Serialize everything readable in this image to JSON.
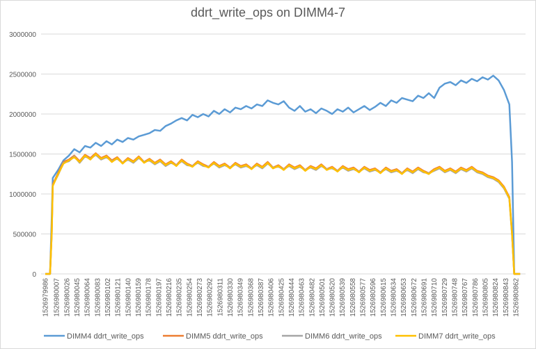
{
  "chart_data": {
    "type": "line",
    "title": "ddrt_write_ops on DIMM4-7",
    "xlabel": "",
    "ylabel": "",
    "ylim": [
      0,
      3000000
    ],
    "xlim": [
      1526979986,
      1526980862
    ],
    "grid": true,
    "legend_position": "bottom",
    "y_ticks": [
      "0",
      "500000",
      "1000000",
      "1500000",
      "2000000",
      "2500000",
      "3000000"
    ],
    "x_tick_labels": [
      "1526979986",
      "1526980007",
      "1526980026",
      "1526980045",
      "1526980064",
      "1526980083",
      "1526980102",
      "1526980121",
      "1526980140",
      "1526980159",
      "1526980178",
      "1526980197",
      "1526980216",
      "1526980235",
      "1526980254",
      "1526980273",
      "1526980292",
      "1526980311",
      "1526980330",
      "1526980349",
      "1526980368",
      "1526980387",
      "1526980406",
      "1526980425",
      "1526980444",
      "1526980463",
      "1526980482",
      "1526980501",
      "1526980520",
      "1526980539",
      "1526980558",
      "1526980577",
      "1526980596",
      "1526980615",
      "1526980634",
      "1526980653",
      "1526980672",
      "1526980691",
      "1526980710",
      "1526980729",
      "1526980748",
      "1526980767",
      "1526980786",
      "1526980805",
      "1526980824",
      "1526980843",
      "1526980862"
    ],
    "x": [
      1526979986,
      1526979990,
      1526979995,
      1526979998,
      1526980000,
      1526980010,
      1526980020,
      1526980030,
      1526980040,
      1526980050,
      1526980060,
      1526980070,
      1526980080,
      1526980090,
      1526980100,
      1526980110,
      1526980120,
      1526980130,
      1526980140,
      1526980150,
      1526980160,
      1526980170,
      1526980180,
      1526980190,
      1526980200,
      1526980210,
      1526980220,
      1526980230,
      1526980240,
      1526980250,
      1526980260,
      1526980270,
      1526980280,
      1526980290,
      1526980300,
      1526980310,
      1526980320,
      1526980330,
      1526980340,
      1526980350,
      1526980360,
      1526980370,
      1526980380,
      1526980390,
      1526980400,
      1526980410,
      1526980420,
      1526980430,
      1526980440,
      1526980450,
      1526980460,
      1526980470,
      1526980480,
      1526980490,
      1526980500,
      1526980510,
      1526980520,
      1526980530,
      1526980540,
      1526980550,
      1526980560,
      1526980570,
      1526980580,
      1526980590,
      1526980600,
      1526980610,
      1526980620,
      1526980630,
      1526980640,
      1526980650,
      1526980660,
      1526980670,
      1526980680,
      1526980690,
      1526980700,
      1526980710,
      1526980720,
      1526980730,
      1526980740,
      1526980750,
      1526980760,
      1526980770,
      1526980780,
      1526980790,
      1526980800,
      1526980810,
      1526980820,
      1526980830,
      1526980840,
      1526980850,
      1526980855,
      1526980859,
      1526980870
    ],
    "series": [
      {
        "name": "DIMM4 ddrt_write_ops",
        "color": "#5B9BD5",
        "values": [
          0,
          0,
          0,
          700000,
          1200000,
          1300000,
          1420000,
          1480000,
          1560000,
          1520000,
          1600000,
          1580000,
          1640000,
          1600000,
          1660000,
          1620000,
          1680000,
          1650000,
          1700000,
          1680000,
          1720000,
          1740000,
          1760000,
          1800000,
          1790000,
          1850000,
          1880000,
          1920000,
          1950000,
          1920000,
          1990000,
          1960000,
          2000000,
          1970000,
          2040000,
          2000000,
          2060000,
          2020000,
          2080000,
          2060000,
          2100000,
          2070000,
          2120000,
          2100000,
          2170000,
          2140000,
          2120000,
          2160000,
          2080000,
          2040000,
          2100000,
          2030000,
          2060000,
          2010000,
          2070000,
          2040000,
          2000000,
          2060000,
          2030000,
          2080000,
          2020000,
          2060000,
          2100000,
          2050000,
          2090000,
          2140000,
          2100000,
          2170000,
          2140000,
          2200000,
          2180000,
          2160000,
          2230000,
          2200000,
          2260000,
          2200000,
          2330000,
          2380000,
          2400000,
          2360000,
          2420000,
          2390000,
          2440000,
          2410000,
          2460000,
          2430000,
          2480000,
          2420000,
          2300000,
          2120000,
          1400000,
          0,
          0
        ]
      },
      {
        "name": "DIMM5 ddrt_write_ops",
        "color": "#ED7D31",
        "values": [
          0,
          0,
          0,
          520000,
          1120000,
          1260000,
          1400000,
          1430000,
          1480000,
          1410000,
          1490000,
          1450000,
          1510000,
          1450000,
          1480000,
          1420000,
          1460000,
          1390000,
          1450000,
          1410000,
          1470000,
          1400000,
          1440000,
          1390000,
          1430000,
          1370000,
          1410000,
          1360000,
          1430000,
          1380000,
          1350000,
          1410000,
          1370000,
          1340000,
          1400000,
          1350000,
          1380000,
          1330000,
          1390000,
          1350000,
          1370000,
          1320000,
          1380000,
          1340000,
          1400000,
          1330000,
          1360000,
          1310000,
          1370000,
          1330000,
          1360000,
          1300000,
          1350000,
          1320000,
          1370000,
          1310000,
          1340000,
          1290000,
          1350000,
          1310000,
          1330000,
          1280000,
          1340000,
          1300000,
          1320000,
          1270000,
          1330000,
          1290000,
          1310000,
          1260000,
          1320000,
          1280000,
          1330000,
          1290000,
          1260000,
          1310000,
          1340000,
          1290000,
          1320000,
          1280000,
          1330000,
          1300000,
          1340000,
          1290000,
          1270000,
          1230000,
          1210000,
          1170000,
          1090000,
          960000,
          510000,
          0,
          0
        ]
      },
      {
        "name": "DIMM6 ddrt_write_ops",
        "color": "#A5A5A5",
        "values": [
          0,
          0,
          0,
          500000,
          1110000,
          1240000,
          1390000,
          1410000,
          1470000,
          1390000,
          1470000,
          1440000,
          1490000,
          1430000,
          1460000,
          1410000,
          1440000,
          1390000,
          1430000,
          1390000,
          1450000,
          1400000,
          1420000,
          1370000,
          1410000,
          1350000,
          1390000,
          1360000,
          1410000,
          1360000,
          1350000,
          1390000,
          1350000,
          1340000,
          1380000,
          1330000,
          1360000,
          1330000,
          1370000,
          1330000,
          1350000,
          1320000,
          1360000,
          1320000,
          1380000,
          1330000,
          1340000,
          1310000,
          1350000,
          1310000,
          1340000,
          1300000,
          1330000,
          1300000,
          1350000,
          1310000,
          1320000,
          1290000,
          1330000,
          1290000,
          1310000,
          1280000,
          1320000,
          1280000,
          1300000,
          1270000,
          1310000,
          1270000,
          1290000,
          1260000,
          1300000,
          1260000,
          1310000,
          1270000,
          1260000,
          1290000,
          1320000,
          1270000,
          1300000,
          1260000,
          1310000,
          1280000,
          1320000,
          1270000,
          1250000,
          1210000,
          1190000,
          1150000,
          1070000,
          940000,
          490000,
          0,
          0
        ]
      },
      {
        "name": "DIMM7 ddrt_write_ops",
        "color": "#FFC000",
        "values": [
          0,
          0,
          0,
          500000,
          1100000,
          1250000,
          1380000,
          1420000,
          1460000,
          1400000,
          1480000,
          1430000,
          1500000,
          1440000,
          1470000,
          1400000,
          1450000,
          1380000,
          1440000,
          1400000,
          1460000,
          1390000,
          1430000,
          1380000,
          1420000,
          1360000,
          1400000,
          1350000,
          1420000,
          1370000,
          1340000,
          1400000,
          1360000,
          1330000,
          1390000,
          1340000,
          1370000,
          1320000,
          1380000,
          1340000,
          1360000,
          1310000,
          1370000,
          1330000,
          1390000,
          1320000,
          1350000,
          1300000,
          1360000,
          1320000,
          1350000,
          1290000,
          1340000,
          1310000,
          1360000,
          1300000,
          1330000,
          1280000,
          1340000,
          1300000,
          1320000,
          1270000,
          1330000,
          1290000,
          1310000,
          1260000,
          1320000,
          1280000,
          1300000,
          1250000,
          1310000,
          1270000,
          1320000,
          1280000,
          1250000,
          1300000,
          1330000,
          1280000,
          1310000,
          1270000,
          1320000,
          1290000,
          1330000,
          1280000,
          1260000,
          1220000,
          1200000,
          1160000,
          1080000,
          950000,
          500000,
          0,
          0
        ]
      }
    ]
  }
}
